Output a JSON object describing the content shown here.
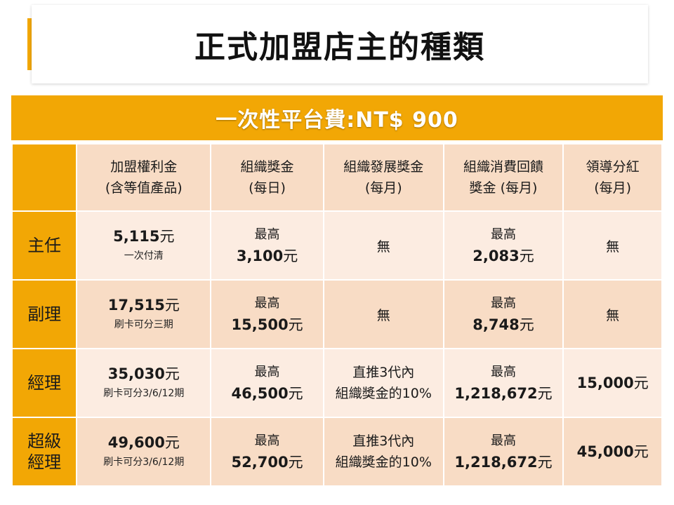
{
  "title": "正式加盟店主的種類",
  "fee_bar": "一次性平台費:NT$ 900",
  "headers": [
    {
      "line1": "加盟權利金",
      "line2": "(含等值產品)"
    },
    {
      "line1": "組織獎金",
      "line2": "(每日)"
    },
    {
      "line1": "組織發展獎金",
      "line2": "(每月)"
    },
    {
      "line1": "組織消費回饋",
      "line2": "獎金 (每月)"
    },
    {
      "line1": "領導分紅",
      "line2": "(每月)"
    }
  ],
  "rows": [
    {
      "rank": "主任",
      "fee": {
        "amount": "5,115",
        "unit": "元",
        "note": "一次付清"
      },
      "org_bonus": {
        "prefix": "最高",
        "amount": "3,100",
        "unit": "元"
      },
      "dev_bonus": {
        "text": "無"
      },
      "rebate": {
        "prefix": "最高",
        "amount": "2,083",
        "unit": "元"
      },
      "dividend": {
        "text": "無"
      }
    },
    {
      "rank": "副理",
      "fee": {
        "amount": "17,515",
        "unit": "元",
        "note": "刷卡可分三期"
      },
      "org_bonus": {
        "prefix": "最高",
        "amount": "15,500",
        "unit": "元"
      },
      "dev_bonus": {
        "text": "無"
      },
      "rebate": {
        "prefix": "最高",
        "amount": "8,748",
        "unit": "元"
      },
      "dividend": {
        "text": "無"
      }
    },
    {
      "rank": "經理",
      "fee": {
        "amount": "35,030",
        "unit": "元",
        "note": "刷卡可分3/6/12期"
      },
      "org_bonus": {
        "prefix": "最高",
        "amount": "46,500",
        "unit": "元"
      },
      "dev_bonus": {
        "line1": "直推3代內",
        "line2": "組織獎金的10%"
      },
      "rebate": {
        "prefix": "最高",
        "amount": "1,218,672",
        "unit": "元"
      },
      "dividend": {
        "amount": "15,000",
        "unit": "元"
      }
    },
    {
      "rank_line1": "超級",
      "rank_line2": "經理",
      "fee": {
        "amount": "49,600",
        "unit": "元",
        "note": "刷卡可分3/6/12期"
      },
      "org_bonus": {
        "prefix": "最高",
        "amount": "52,700",
        "unit": "元"
      },
      "dev_bonus": {
        "line1": "直推3代內",
        "line2": "組織獎金的10%"
      },
      "rebate": {
        "prefix": "最高",
        "amount": "1,218,672",
        "unit": "元"
      },
      "dividend": {
        "amount": "45,000",
        "unit": "元"
      }
    }
  ],
  "colors": {
    "accent": "#f2a705",
    "header_bg": "#f8dcc5",
    "row_light": "#fcece1",
    "row_dark": "#f8dcc5"
  }
}
